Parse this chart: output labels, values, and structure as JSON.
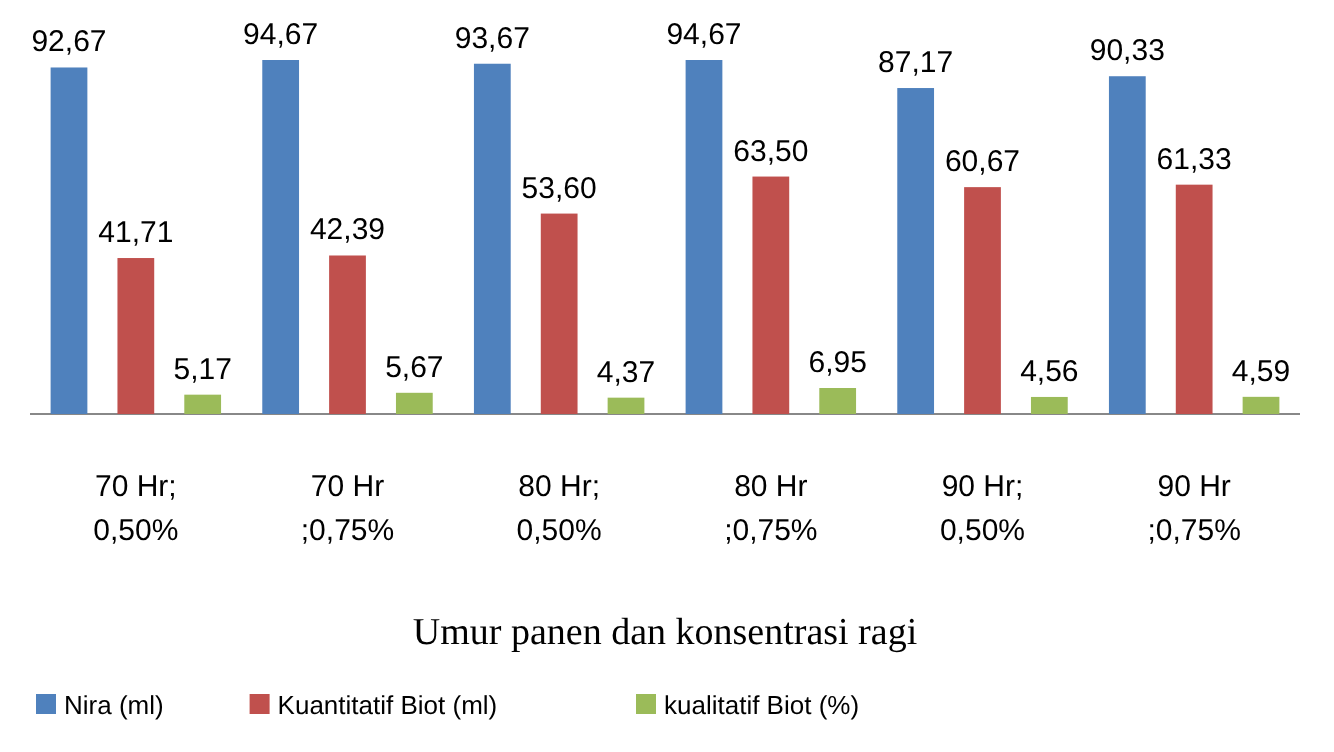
{
  "chart_data": {
    "type": "bar",
    "xlabel": "Umur panen dan konsentrasi ragi",
    "categories": [
      "70 Hr;\n0,50%",
      "70 Hr\n;0,75%",
      "80 Hr;\n0,50%",
      "80 Hr\n;0,75%",
      "90 Hr;\n0,50%",
      "90 Hr\n;0,75%"
    ],
    "series": [
      {
        "name": "Nira (ml)",
        "color": "#4f81bd",
        "values": [
          92.67,
          94.67,
          93.67,
          94.67,
          87.17,
          90.33
        ],
        "value_labels": [
          "92,67",
          "94,67",
          "93,67",
          "94,67",
          "87,17",
          "90,33"
        ]
      },
      {
        "name": "Kuantitatif Biot (ml)",
        "color": "#c0504d",
        "values": [
          41.71,
          42.39,
          53.6,
          63.5,
          60.67,
          61.33
        ],
        "value_labels": [
          "41,71",
          "42,39",
          "53,60",
          "63,50",
          "60,67",
          "61,33"
        ]
      },
      {
        "name": "kualitatif Biot (%)",
        "color": "#9bbb59",
        "values": [
          5.17,
          5.67,
          4.37,
          6.95,
          4.56,
          4.59
        ],
        "value_labels": [
          "5,17",
          "5,67",
          "4,37",
          "6,95",
          "4,56",
          "4,59"
        ]
      }
    ],
    "legend": "bottom",
    "grid": false
  }
}
